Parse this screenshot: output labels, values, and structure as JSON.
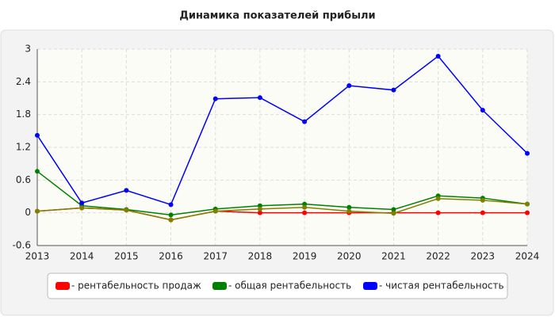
{
  "chart_data": {
    "type": "line",
    "title": "Динамика показателей прибыли",
    "x": [
      2013,
      2014,
      2015,
      2016,
      2017,
      2018,
      2019,
      2020,
      2021,
      2022,
      2023,
      2024
    ],
    "xlim": [
      2013,
      2024
    ],
    "xticks": [
      2013,
      2014,
      2015,
      2016,
      2017,
      2018,
      2019,
      2020,
      2021,
      2022,
      2023,
      2024
    ],
    "ylim": [
      -0.6,
      3
    ],
    "yticks": [
      -0.6,
      0,
      0.6,
      1.2,
      1.8,
      2.4,
      3
    ],
    "grid": true,
    "series": [
      {
        "name": "- рентабельность продаж",
        "color": "#ff0000",
        "values": [
          0.03,
          0.09,
          0.05,
          -0.13,
          0.03,
          0,
          0,
          0,
          0,
          0,
          0,
          0
        ]
      },
      {
        "name": "- общая рентабельность",
        "color": "#008000",
        "values": [
          0.76,
          0.13,
          0.06,
          -0.04,
          0.07,
          0.13,
          0.16,
          0.1,
          0.06,
          0.31,
          0.27,
          0.16
        ]
      },
      {
        "name": "- чистая рентабельность",
        "color": "#0000ff",
        "values": [
          1.42,
          0.18,
          0.41,
          0.15,
          2.09,
          2.11,
          1.67,
          2.33,
          2.25,
          2.87,
          1.88,
          1.09
        ]
      },
      {
        "color": "#808000",
        "values": [
          0.03,
          0.09,
          0.05,
          -0.13,
          0.03,
          0.07,
          0.1,
          0.03,
          -0.01,
          0.26,
          0.23,
          0.16
        ]
      }
    ]
  }
}
